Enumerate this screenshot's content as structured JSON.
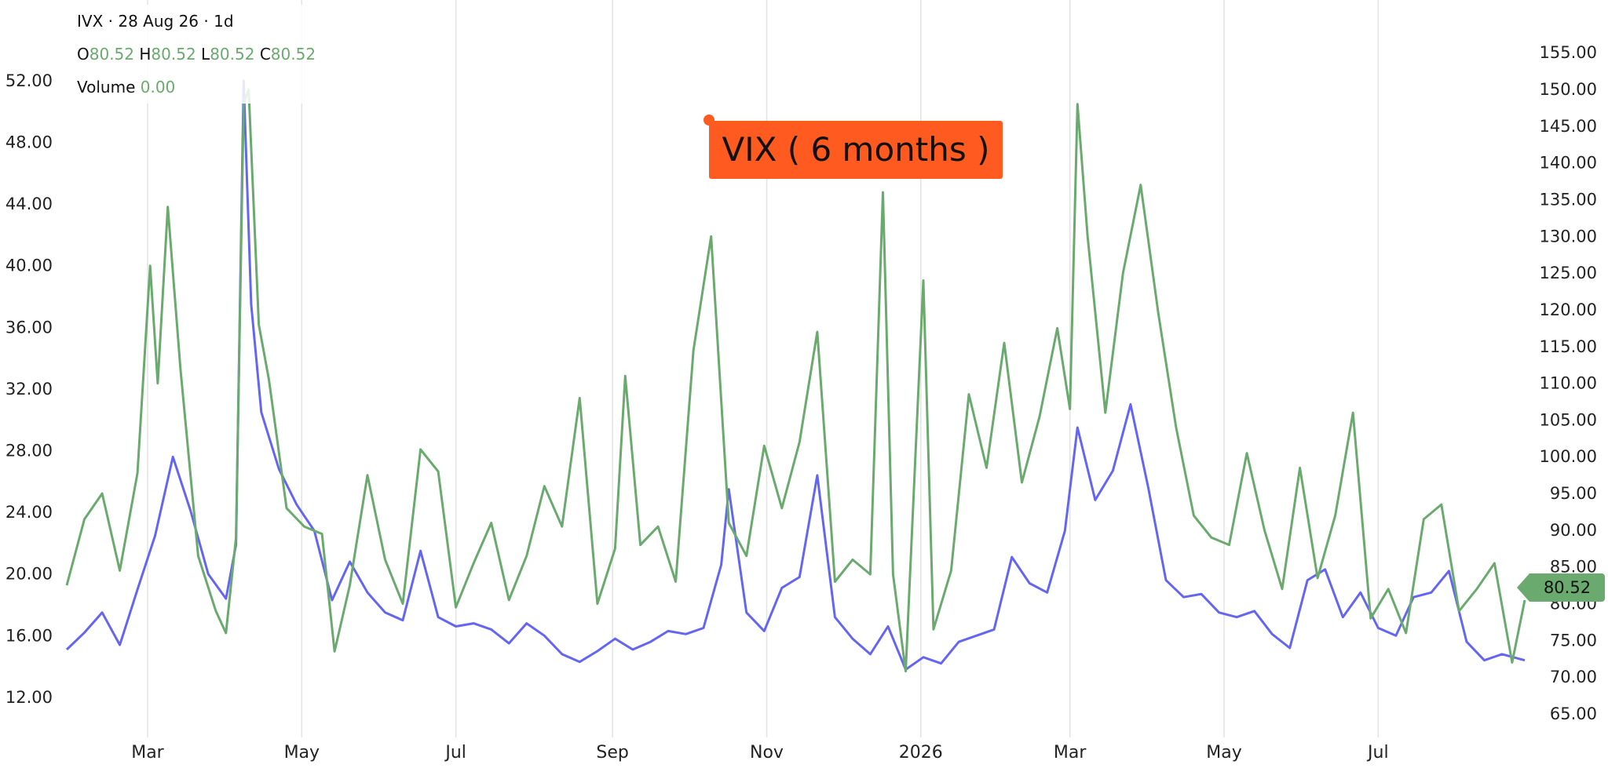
{
  "legend": {
    "symbol_line": "IVX · 28 Aug 26 · 1d",
    "o_label": "O",
    "o_value": "80.52",
    "h_label": "H",
    "h_value": "80.52",
    "l_label": "L",
    "l_value": "80.52",
    "c_label": "C",
    "c_value": "80.52",
    "volume_label": "Volume",
    "volume_value": "0.00"
  },
  "annotation": {
    "text": "VIX ( 6 months )"
  },
  "last_price": {
    "value": "80.52"
  },
  "colors": {
    "green": "#6aaa6e",
    "blue": "#6466f1",
    "annotation": "#ff5a1f",
    "grid": "#e3e3e3"
  },
  "chart_data": {
    "type": "line",
    "title": "",
    "x_range": [
      "2025-01-28",
      "2026-08-28"
    ],
    "x_ticks": [
      {
        "label": "Mar",
        "date": "2025-03-01"
      },
      {
        "label": "May",
        "date": "2025-05-01"
      },
      {
        "label": "Jul",
        "date": "2025-07-01"
      },
      {
        "label": "Sep",
        "date": "2025-09-01"
      },
      {
        "label": "Nov",
        "date": "2025-11-01"
      },
      {
        "label": "2026",
        "date": "2026-01-01"
      },
      {
        "label": "Mar",
        "date": "2026-03-01"
      },
      {
        "label": "May",
        "date": "2026-05-01"
      },
      {
        "label": "Jul",
        "date": "2026-07-01"
      }
    ],
    "left_axis": {
      "range": [
        9.4,
        55.2
      ],
      "ticks": [
        "12.00",
        "16.00",
        "20.00",
        "24.00",
        "28.00",
        "32.00",
        "36.00",
        "40.00",
        "44.00",
        "48.00",
        "52.00"
      ]
    },
    "right_axis": {
      "range": [
        61.8,
        157.9
      ],
      "ticks": [
        "65.00",
        "70.00",
        "75.00",
        "80.00",
        "85.00",
        "90.00",
        "95.00",
        "100.00",
        "105.00",
        "110.00",
        "115.00",
        "120.00",
        "125.00",
        "130.00",
        "135.00",
        "140.00",
        "145.00",
        "150.00",
        "155.00"
      ]
    },
    "grid": true,
    "series": [
      {
        "axis": "left",
        "color": "#6466f1",
        "points": [
          [
            "2025-01-28",
            15.1
          ],
          [
            "2025-02-04",
            16.2
          ],
          [
            "2025-02-11",
            17.5
          ],
          [
            "2025-02-18",
            15.4
          ],
          [
            "2025-02-25",
            19.0
          ],
          [
            "2025-03-04",
            22.5
          ],
          [
            "2025-03-11",
            27.6
          ],
          [
            "2025-03-18",
            24.1
          ],
          [
            "2025-03-25",
            20.0
          ],
          [
            "2025-04-01",
            18.4
          ],
          [
            "2025-04-05",
            21.9
          ],
          [
            "2025-04-08",
            52.0
          ],
          [
            "2025-04-11",
            37.5
          ],
          [
            "2025-04-15",
            30.5
          ],
          [
            "2025-04-22",
            26.8
          ],
          [
            "2025-04-29",
            24.5
          ],
          [
            "2025-05-06",
            22.8
          ],
          [
            "2025-05-13",
            18.3
          ],
          [
            "2025-05-20",
            20.8
          ],
          [
            "2025-05-27",
            18.8
          ],
          [
            "2025-06-03",
            17.5
          ],
          [
            "2025-06-10",
            17.0
          ],
          [
            "2025-06-17",
            21.5
          ],
          [
            "2025-06-24",
            17.2
          ],
          [
            "2025-07-01",
            16.6
          ],
          [
            "2025-07-08",
            16.8
          ],
          [
            "2025-07-15",
            16.4
          ],
          [
            "2025-07-22",
            15.5
          ],
          [
            "2025-07-29",
            16.8
          ],
          [
            "2025-08-05",
            16.0
          ],
          [
            "2025-08-12",
            14.8
          ],
          [
            "2025-08-19",
            14.3
          ],
          [
            "2025-08-26",
            15.0
          ],
          [
            "2025-09-02",
            15.8
          ],
          [
            "2025-09-09",
            15.1
          ],
          [
            "2025-09-16",
            15.6
          ],
          [
            "2025-09-23",
            16.3
          ],
          [
            "2025-09-30",
            16.1
          ],
          [
            "2025-10-07",
            16.5
          ],
          [
            "2025-10-14",
            20.6
          ],
          [
            "2025-10-17",
            25.5
          ],
          [
            "2025-10-24",
            17.5
          ],
          [
            "2025-10-31",
            16.3
          ],
          [
            "2025-11-07",
            19.1
          ],
          [
            "2025-11-14",
            19.8
          ],
          [
            "2025-11-21",
            26.4
          ],
          [
            "2025-11-28",
            17.2
          ],
          [
            "2025-12-05",
            15.8
          ],
          [
            "2025-12-12",
            14.8
          ],
          [
            "2025-12-19",
            16.6
          ],
          [
            "2025-12-26",
            13.8
          ],
          [
            "2026-01-02",
            14.6
          ],
          [
            "2026-01-09",
            14.2
          ],
          [
            "2026-01-16",
            15.6
          ],
          [
            "2026-01-23",
            16.0
          ],
          [
            "2026-01-30",
            16.4
          ],
          [
            "2026-02-06",
            21.1
          ],
          [
            "2026-02-13",
            19.4
          ],
          [
            "2026-02-20",
            18.8
          ],
          [
            "2026-02-27",
            22.8
          ],
          [
            "2026-03-04",
            29.5
          ],
          [
            "2026-03-11",
            24.8
          ],
          [
            "2026-03-18",
            26.7
          ],
          [
            "2026-03-25",
            31.0
          ],
          [
            "2026-04-01",
            25.6
          ],
          [
            "2026-04-08",
            19.6
          ],
          [
            "2026-04-15",
            18.5
          ],
          [
            "2026-04-22",
            18.7
          ],
          [
            "2026-04-29",
            17.5
          ],
          [
            "2026-05-06",
            17.2
          ],
          [
            "2026-05-13",
            17.6
          ],
          [
            "2026-05-20",
            16.1
          ],
          [
            "2026-05-27",
            15.2
          ],
          [
            "2026-06-03",
            19.6
          ],
          [
            "2026-06-10",
            20.3
          ],
          [
            "2026-06-17",
            17.2
          ],
          [
            "2026-06-24",
            18.8
          ],
          [
            "2026-07-01",
            16.5
          ],
          [
            "2026-07-08",
            16.0
          ],
          [
            "2026-07-15",
            18.5
          ],
          [
            "2026-07-22",
            18.8
          ],
          [
            "2026-07-29",
            20.2
          ],
          [
            "2026-08-05",
            15.6
          ],
          [
            "2026-08-12",
            14.4
          ],
          [
            "2026-08-19",
            14.8
          ],
          [
            "2026-08-28",
            14.4
          ]
        ]
      },
      {
        "axis": "right",
        "color": "#6aaa6e",
        "points": [
          [
            "2025-01-28",
            82.5
          ],
          [
            "2025-02-04",
            91.5
          ],
          [
            "2025-02-11",
            95.0
          ],
          [
            "2025-02-18",
            84.5
          ],
          [
            "2025-02-25",
            97.8
          ],
          [
            "2025-03-02",
            126.0
          ],
          [
            "2025-03-05",
            110.0
          ],
          [
            "2025-03-09",
            134.0
          ],
          [
            "2025-03-14",
            112.0
          ],
          [
            "2025-03-21",
            86.5
          ],
          [
            "2025-03-28",
            79.0
          ],
          [
            "2025-04-01",
            76.0
          ],
          [
            "2025-04-05",
            89.0
          ],
          [
            "2025-04-08",
            148.0
          ],
          [
            "2025-04-10",
            150.0
          ],
          [
            "2025-04-14",
            118.0
          ],
          [
            "2025-04-18",
            110.5
          ],
          [
            "2025-04-25",
            93.0
          ],
          [
            "2025-05-02",
            90.5
          ],
          [
            "2025-05-09",
            89.5
          ],
          [
            "2025-05-14",
            73.5
          ],
          [
            "2025-05-20",
            82.5
          ],
          [
            "2025-05-27",
            97.5
          ],
          [
            "2025-06-03",
            86.0
          ],
          [
            "2025-06-10",
            80.0
          ],
          [
            "2025-06-17",
            101.0
          ],
          [
            "2025-06-24",
            98.0
          ],
          [
            "2025-07-01",
            79.5
          ],
          [
            "2025-07-08",
            85.5
          ],
          [
            "2025-07-15",
            91.0
          ],
          [
            "2025-07-22",
            80.5
          ],
          [
            "2025-07-29",
            86.5
          ],
          [
            "2025-08-05",
            96.0
          ],
          [
            "2025-08-12",
            90.5
          ],
          [
            "2025-08-19",
            108.0
          ],
          [
            "2025-08-26",
            80.0
          ],
          [
            "2025-09-02",
            87.5
          ],
          [
            "2025-09-06",
            111.0
          ],
          [
            "2025-09-12",
            88.0
          ],
          [
            "2025-09-19",
            90.5
          ],
          [
            "2025-09-26",
            83.0
          ],
          [
            "2025-10-03",
            114.5
          ],
          [
            "2025-10-10",
            130.0
          ],
          [
            "2025-10-17",
            91.0
          ],
          [
            "2025-10-24",
            86.5
          ],
          [
            "2025-10-31",
            101.5
          ],
          [
            "2025-11-07",
            93.0
          ],
          [
            "2025-11-14",
            102.0
          ],
          [
            "2025-11-21",
            117.0
          ],
          [
            "2025-11-28",
            83.0
          ],
          [
            "2025-12-05",
            86.0
          ],
          [
            "2025-12-12",
            84.0
          ],
          [
            "2025-12-17",
            136.0
          ],
          [
            "2025-12-21",
            84.0
          ],
          [
            "2025-12-26",
            70.8
          ],
          [
            "2026-01-02",
            124.0
          ],
          [
            "2026-01-06",
            76.5
          ],
          [
            "2026-01-13",
            84.5
          ],
          [
            "2026-01-20",
            108.5
          ],
          [
            "2026-01-27",
            98.5
          ],
          [
            "2026-02-03",
            115.5
          ],
          [
            "2026-02-10",
            96.5
          ],
          [
            "2026-02-17",
            105.5
          ],
          [
            "2026-02-24",
            117.5
          ],
          [
            "2026-03-01",
            106.5
          ],
          [
            "2026-03-04",
            148.0
          ],
          [
            "2026-03-08",
            130.0
          ],
          [
            "2026-03-15",
            106.0
          ],
          [
            "2026-03-22",
            125.0
          ],
          [
            "2026-03-29",
            137.0
          ],
          [
            "2026-04-05",
            119.5
          ],
          [
            "2026-04-12",
            104.0
          ],
          [
            "2026-04-19",
            92.0
          ],
          [
            "2026-04-26",
            89.0
          ],
          [
            "2026-05-03",
            88.0
          ],
          [
            "2026-05-10",
            100.5
          ],
          [
            "2026-05-17",
            90.0
          ],
          [
            "2026-05-24",
            82.0
          ],
          [
            "2026-05-31",
            98.5
          ],
          [
            "2026-06-07",
            83.5
          ],
          [
            "2026-06-14",
            92.0
          ],
          [
            "2026-06-21",
            106.0
          ],
          [
            "2026-06-28",
            78.0
          ],
          [
            "2026-07-05",
            82.0
          ],
          [
            "2026-07-12",
            76.0
          ],
          [
            "2026-07-19",
            91.5
          ],
          [
            "2026-07-26",
            93.5
          ],
          [
            "2026-08-02",
            79.0
          ],
          [
            "2026-08-09",
            82.0
          ],
          [
            "2026-08-16",
            85.5
          ],
          [
            "2026-08-23",
            72.0
          ],
          [
            "2026-08-28",
            80.5
          ]
        ]
      }
    ]
  }
}
